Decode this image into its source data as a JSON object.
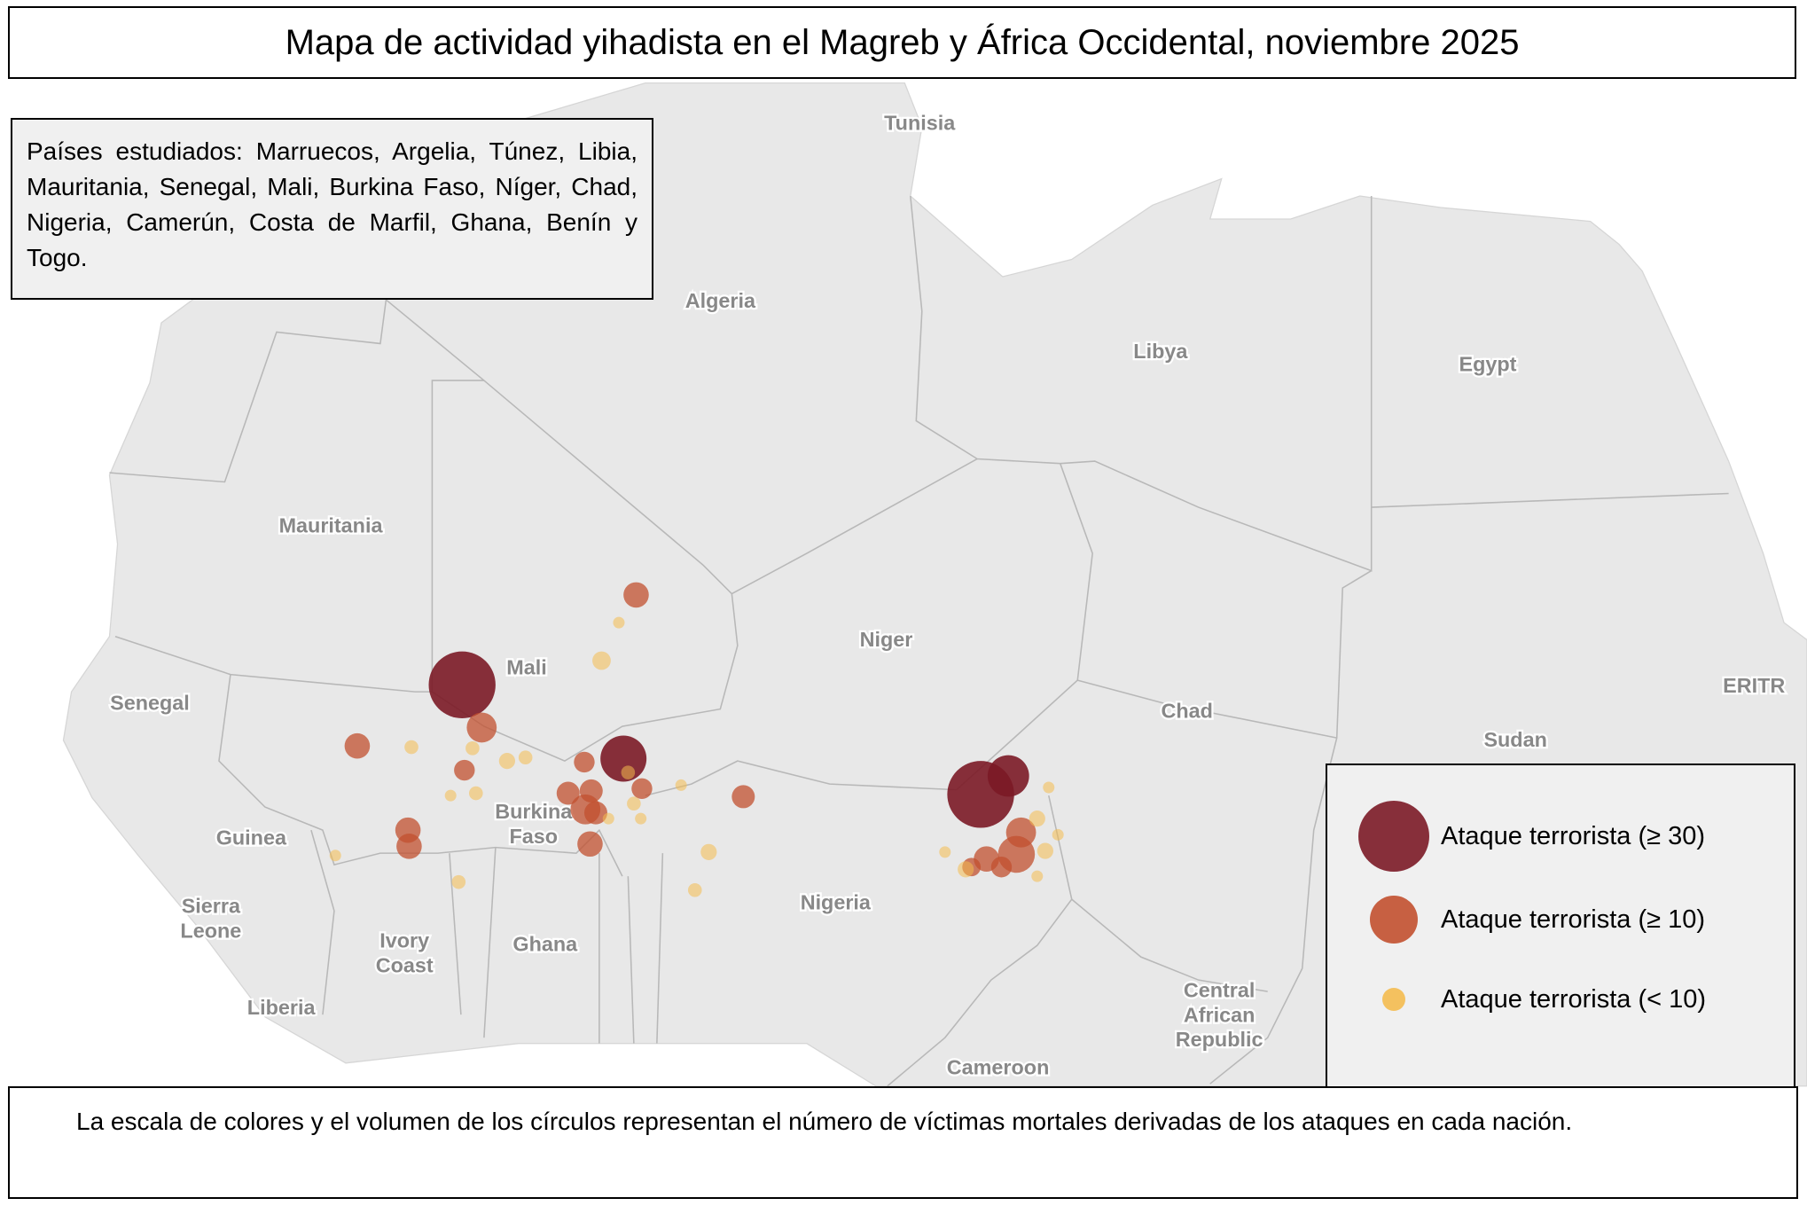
{
  "title": "Mapa de actividad yihadista en el Magreb y África Occidental, noviembre 2025",
  "info": "Países estudiados: Marruecos, Argelia, Túnez, Libia, Mauritania, Senegal, Mali, Burkina Faso, Níger, Chad, Nigeria, Camerún, Costa de Marfil, Ghana, Benín y Togo.",
  "map": {
    "labels": [
      [
        "Tunisia"
      ],
      [
        "Algeria"
      ],
      [
        "Libya"
      ],
      [
        "Egypt"
      ],
      [
        "Mauritania"
      ],
      [
        "Mali"
      ],
      [
        "Niger"
      ],
      [
        "Senegal"
      ],
      [
        "Chad"
      ],
      [
        "Sudan"
      ],
      [
        "ERITR"
      ],
      [
        "Guinea"
      ],
      [
        "Burkina",
        "Faso"
      ],
      [
        "Nigeria"
      ],
      [
        "Sierra",
        "Leone"
      ],
      [
        "Ivory",
        "Coast"
      ],
      [
        "Ghana"
      ],
      [
        "Liberia"
      ],
      [
        "Central",
        "African",
        "Republic"
      ],
      [
        "Cameroon"
      ]
    ]
  },
  "legend": {
    "items": [
      {
        "label": "Ataque terrorista (≥ 30)",
        "color": "#7b1a26"
      },
      {
        "label": "Ataque terrorista (≥ 10)",
        "color": "#c2502f"
      },
      {
        "label": "Ataque terrorista (< 10)",
        "color": "#f4bb4f"
      }
    ]
  },
  "footer": "La escala de colores y el volumen de los círculos representan el número de víctimas mortales derivadas de los ataques en cada nación."
}
